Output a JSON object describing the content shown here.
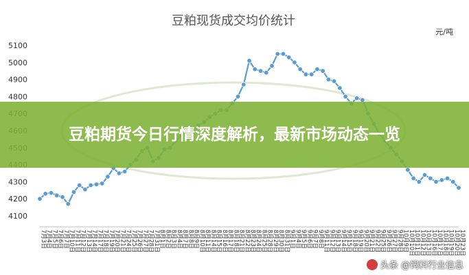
{
  "banner": {
    "text": "豆粕期货今日行情深度解析，最新市场动态一览"
  },
  "watermark": {
    "text": "头条 @饲料行业信息"
  },
  "chart_data": {
    "type": "line",
    "title": "豆粕现货成交均价统计",
    "unit": "元/吨",
    "ylim": [
      4100,
      5100
    ],
    "yticks": [
      4100,
      4200,
      4300,
      4400,
      4500,
      4600,
      4700,
      4800,
      4900,
      5000,
      5100
    ],
    "grid": false,
    "legend": "none",
    "series_color": "#5b9bd5",
    "categories": [
      "7月3日",
      "7月4日",
      "7月5日",
      "7月6日",
      "7月7日",
      "7月10日",
      "7月11日",
      "7月12日",
      "7月13日",
      "7月14日",
      "7月17日",
      "7月18日",
      "7月19日",
      "7月20日",
      "7月21日",
      "7月24日",
      "7月25日",
      "7月26日",
      "7月27日",
      "7月28日",
      "7月31日",
      "8月1日",
      "8月2日",
      "8月3日",
      "8月4日",
      "8月7日",
      "8月8日",
      "8月9日",
      "8月10日",
      "8月11日",
      "8月14日",
      "8月15日",
      "8月16日",
      "8月17日",
      "8月18日",
      "8月21日",
      "8月22日",
      "8月23日",
      "8月24日",
      "8月25日",
      "8月28日",
      "8月29日",
      "8月30日",
      "8月31日",
      "9月1日",
      "9月4日",
      "9月5日",
      "9月6日",
      "9月7日",
      "9月8日",
      "9月11日",
      "9月12日",
      "9月13日",
      "9月14日",
      "9月15日",
      "9月18日",
      "9月19日",
      "9月20日",
      "9月21日",
      "9月22日",
      "9月25日",
      "9月26日",
      "9月27日",
      "9月28日",
      "10月9日",
      "10月10日",
      "10月11日",
      "10月12日",
      "10月13日",
      "10月16日",
      "10月17日",
      "10月18日",
      "10月19日",
      "10月20日",
      "10月23日"
    ],
    "series": [
      {
        "values": [
          4200,
          4230,
          4235,
          4220,
          4210,
          4170,
          4240,
          4280,
          4255,
          4280,
          4285,
          4290,
          4330,
          4380,
          4350,
          4360,
          4400,
          4430,
          4480,
          4500,
          4420,
          4440,
          4490,
          4500,
          4540,
          4570,
          4580,
          4600,
          4630,
          4650,
          4680,
          4700,
          4720,
          4720,
          4760,
          4800,
          4870,
          5010,
          4960,
          4950,
          4940,
          4980,
          5050,
          5050,
          5030,
          5000,
          4960,
          4930,
          4930,
          4960,
          4950,
          4900,
          4890,
          4850,
          4800,
          4760,
          4790,
          4780,
          4700,
          4640,
          4580,
          4540,
          4500,
          4460,
          4420,
          4370,
          4320,
          4300,
          4340,
          4320,
          4300,
          4310,
          4320,
          4300,
          4265
        ]
      }
    ]
  }
}
